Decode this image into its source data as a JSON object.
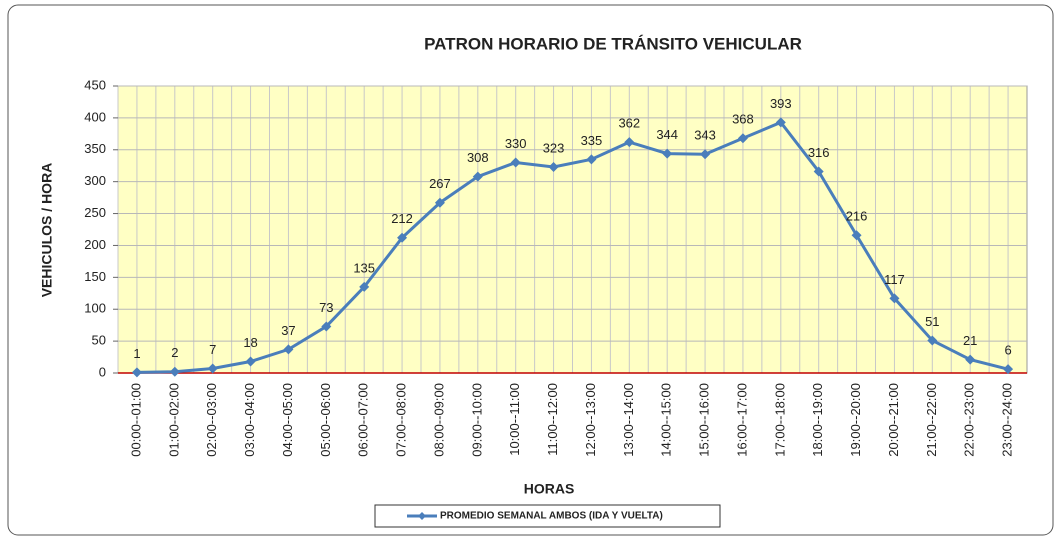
{
  "chart_data": {
    "type": "line",
    "title": "PATRON HORARIO DE TRÁNSITO VEHICULAR",
    "x_label": "HORAS",
    "y_label": "VEHICULOS / HORA",
    "categories": [
      "00:00--01:00",
      "01:00--02:00",
      "02:00--03:00",
      "03:00--04:00",
      "04:00--05:00",
      "05:00--06:00",
      "06:00--07:00",
      "07:00--08:00",
      "08:00--09:00",
      "09:00--10:00",
      "10:00--11:00",
      "11:00--12:00",
      "12:00--13:00",
      "13:00--14:00",
      "14:00--15:00",
      "15:00--16:00",
      "16:00--17:00",
      "17:00--18:00",
      "18:00--19:00",
      "19:00--20:00",
      "20:00--21:00",
      "21:00--22:00",
      "22:00--23:00",
      "23:00--24:00"
    ],
    "series": [
      {
        "name": "PROMEDIO SEMANAL AMBOS (IDA Y VUELTA)",
        "color": "#4a7ebb",
        "values": [
          1,
          2,
          7,
          18,
          37,
          73,
          135,
          212,
          267,
          308,
          330,
          323,
          335,
          362,
          344,
          343,
          368,
          393,
          316,
          216,
          117,
          51,
          21,
          6
        ]
      }
    ],
    "ylim": [
      0,
      450
    ],
    "yticks": [
      0,
      50,
      100,
      150,
      200,
      250,
      300,
      350,
      400,
      450
    ],
    "grid": true,
    "legend": "bottom"
  }
}
